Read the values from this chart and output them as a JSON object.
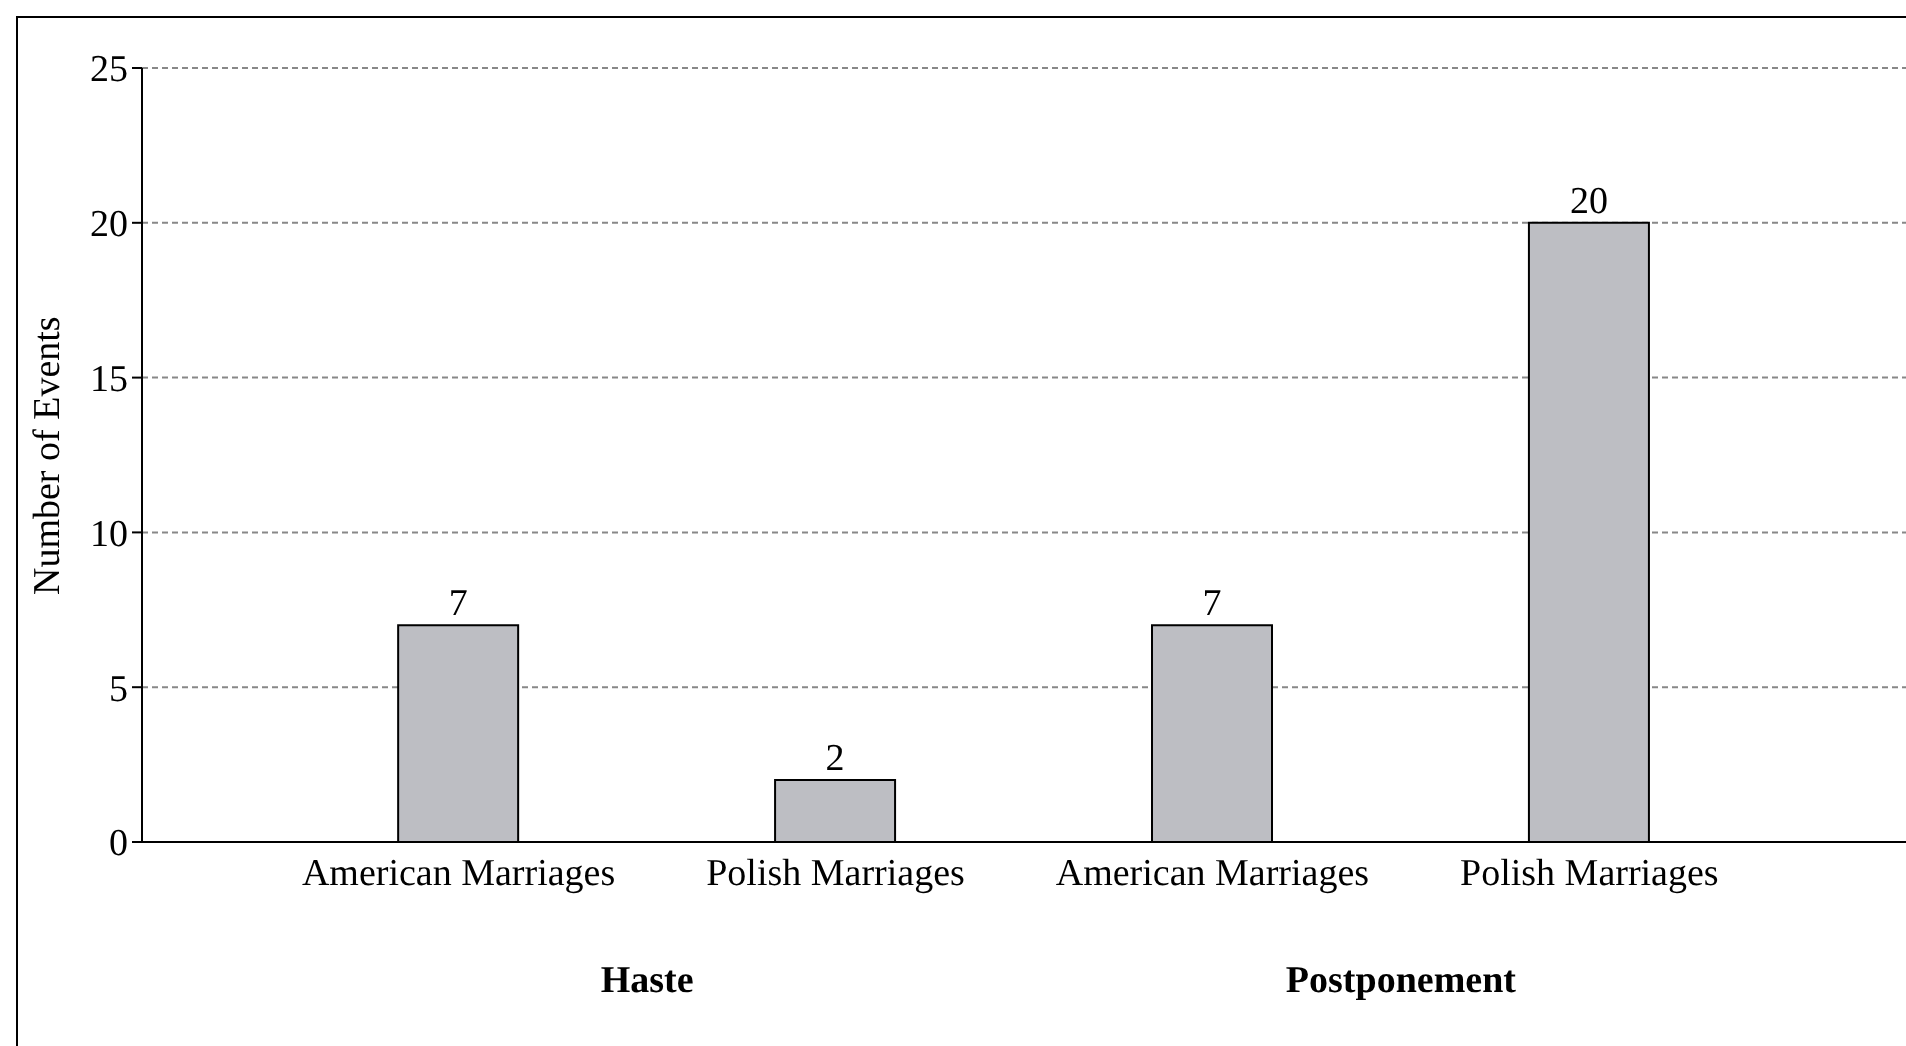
{
  "chart_data": {
    "type": "bar",
    "ylabel": "Number of Events",
    "categories": [
      "American Marriages",
      "Polish Marriages",
      "American Marriages",
      "Polish Marriages"
    ],
    "values": [
      7,
      2,
      7,
      20
    ],
    "color": "#bdbec3",
    "ylim": [
      0,
      25
    ],
    "yticks": [
      0,
      5,
      10,
      15,
      20,
      25
    ],
    "grid": "y",
    "data_labels": true,
    "annotations": [
      "Haste",
      "Postponement"
    ]
  }
}
